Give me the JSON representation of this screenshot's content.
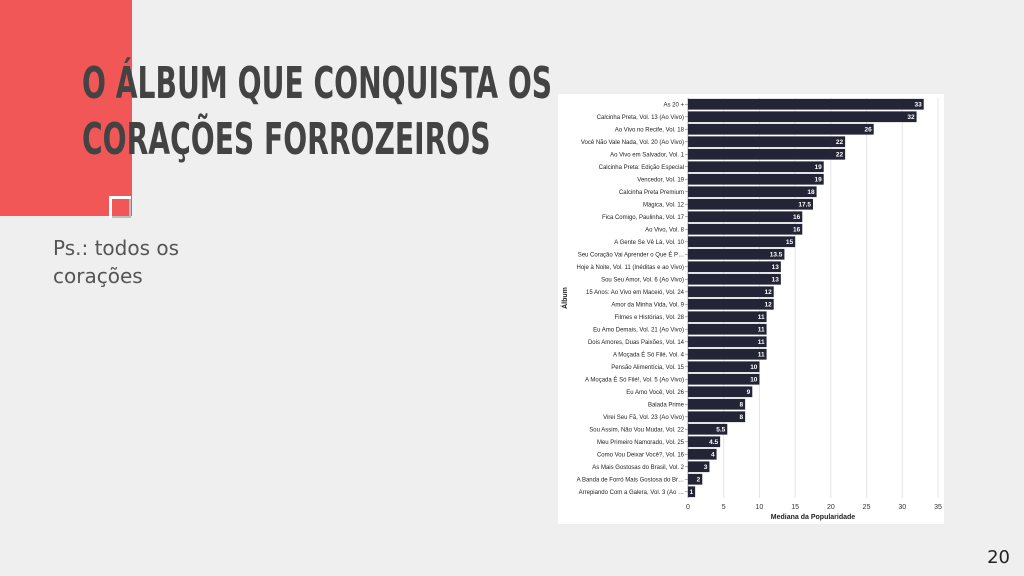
{
  "slide": {
    "title_line1": "O álbum que conquista os",
    "title_line2": "corações forrozeiros",
    "subtitle": "Ps.: todos os corações",
    "page_number": "20"
  },
  "colors": {
    "accent": "#f25757",
    "bar": "#232536",
    "text": "#434343"
  },
  "chart_data": {
    "type": "bar",
    "orientation": "horizontal",
    "title": "",
    "xlabel": "Mediana da Popularidade",
    "ylabel": "Álbum",
    "xlim": [
      0,
      35
    ],
    "xticks": [
      0,
      5,
      10,
      15,
      20,
      25,
      30,
      35
    ],
    "grid": true,
    "categories": [
      "As 20 +",
      "Calcinha Preta, Vol. 13 (Ao Vivo)",
      "Ao Vivo no Recife, Vol. 18",
      "Você Não Vale Nada, Vol. 20 (Ao Vivo)",
      "Ao Vivo em Salvador, Vol. 1",
      "Calcinha Preta: Edição Especial",
      "Vencedor, Vol. 19",
      "Calcinha Preta Premium",
      "Mágica, Vol. 12",
      "Fica Comigo, Paulinha, Vol. 17",
      "Ao Vivo, Vol. 8",
      "A Gente Se Vê Lá, Vol. 10",
      "Seu Coração Vai Aprender o Que É P…",
      "Hoje à Noite, Vol. 11 (Inéditas e ao Vivo)",
      "Sou Seu Amor, Vol. 6 (Ao Vivo)",
      "15 Anos: Ao Vivo em Maceió, Vol. 24",
      "Amor da Minha Vida, Vol. 9",
      "Filmes e Histórias, Vol. 28",
      "Eu Amo Demais, Vol. 21 (Ao Vivo)",
      "Dois Amores, Duas Paixões, Vol. 14",
      "A Moçada É Só Filé, Vol. 4",
      "Pensão Alimentícia, Vol. 15",
      "A Moçada É Só Filé!, Vol. 5 (Ao Vivo)",
      "Eu Amo Você, Vol. 26",
      "Balada Prime",
      "Virei Seu Fã, Vol. 23 (Ao Vivo)",
      "Sou Assim, Não Vou Mudar, Vol. 22",
      "Meu Primeiro Namorado, Vol. 25",
      "Como Vou Deixar Você?, Vol. 16",
      "As Mais Gostosas do Brasil, Vol. 2",
      "A Banda de Forró Mais Gostosa do Br…",
      "Arrepiando Com a Galera, Vol. 3 (Ao …"
    ],
    "values": [
      33,
      32,
      26,
      22,
      22,
      19,
      19,
      18,
      17.5,
      16,
      16,
      15,
      13.5,
      13,
      13,
      12,
      12,
      11,
      11,
      11,
      11,
      10,
      10,
      9,
      8,
      8,
      5.5,
      4.5,
      4,
      3,
      2,
      1
    ],
    "data_labels": [
      "33",
      "32",
      "26",
      "22",
      "22",
      "19",
      "19",
      "18",
      "17.5",
      "16",
      "16",
      "15",
      "13.5",
      "13",
      "13",
      "12",
      "12",
      "11",
      "11",
      "11",
      "11",
      "10",
      "10",
      "9",
      "8",
      "8",
      "5.5",
      "4.5",
      "4",
      "3",
      "2",
      "1"
    ]
  }
}
